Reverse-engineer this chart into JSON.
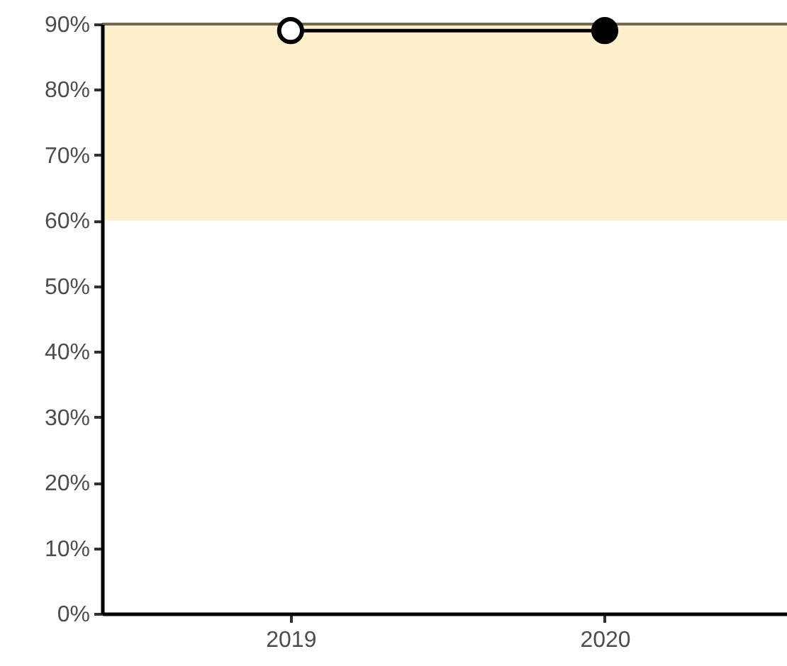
{
  "chart_data": {
    "type": "line",
    "x": [
      2019,
      2020
    ],
    "series": [
      {
        "color": "#000000",
        "colors": [
          "#ffffff",
          "#000000"
        ],
        "values": [
          89,
          89
        ]
      }
    ],
    "xlim": [
      2018.4,
      2020.58
    ],
    "xticks": [
      2019,
      2020
    ],
    "ylim": [
      0,
      90
    ],
    "yticks": [
      {
        "value": 0,
        "label": "0%"
      },
      {
        "value": 10,
        "label": "10%"
      },
      {
        "value": 20,
        "label": "20%"
      },
      {
        "value": 30,
        "label": "30%"
      },
      {
        "value": 40,
        "label": "40%"
      },
      {
        "value": 50,
        "label": "50%"
      },
      {
        "value": 60,
        "label": "60%"
      },
      {
        "value": 70,
        "label": "70%"
      },
      {
        "value": 80,
        "label": "80%"
      },
      {
        "value": 90,
        "label": "90%"
      }
    ],
    "bands": [
      {
        "axis": "y",
        "from": 60,
        "to": 90,
        "color": "#ffefcc"
      }
    ],
    "ref_lines": [
      {
        "axis": "y",
        "value": 90,
        "color": "#706850"
      }
    ],
    "grid": false,
    "marker": "circle",
    "line_style": "solid"
  }
}
